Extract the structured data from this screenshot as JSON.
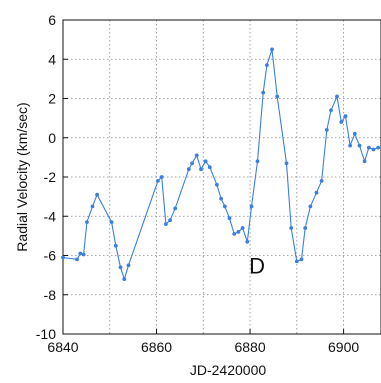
{
  "chart_data": {
    "type": "line",
    "xlabel": "JD-2420000",
    "ylabel": "Radial Velocity (km/sec)",
    "xlim": [
      6840,
      6908
    ],
    "ylim": [
      -10,
      6
    ],
    "xticks": [
      "6840",
      "6860",
      "6880",
      "6900"
    ],
    "yticks": [
      "-10",
      "-8",
      "-6",
      "-4",
      "-2",
      "0",
      "2",
      "4",
      "6"
    ],
    "grid": true,
    "grid_style": "dotted",
    "line_color": "#3b7fe0",
    "series": [
      {
        "x": [
          6840.0,
          6843.0,
          6843.7,
          6844.4,
          6845.1,
          6846.3,
          6847.3,
          6850.4,
          6851.3,
          6852.3,
          6853.1,
          6854.0,
          6860.3,
          6861.1,
          6862.0,
          6862.9,
          6864.0,
          6866.9,
          6867.6,
          6868.6,
          6869.5,
          6870.5,
          6871.4,
          6872.9,
          6873.8,
          6874.6,
          6875.6,
          6876.6,
          6877.5,
          6878.4,
          6879.4,
          6880.3,
          6881.6,
          6882.8,
          6883.6,
          6884.7,
          6885.8,
          6887.8,
          6888.8,
          6890.0,
          6891.0,
          6891.8,
          6892.9,
          6894.2,
          6895.3,
          6896.4,
          6897.3,
          6898.6,
          6899.5,
          6900.4,
          6901.4,
          6902.4,
          6903.4,
          6904.5,
          6905.4,
          6906.4,
          6907.4
        ],
        "y": [
          -6.1,
          -6.2,
          -5.9,
          -5.95,
          -4.3,
          -3.5,
          -2.9,
          -4.3,
          -5.5,
          -6.6,
          -7.2,
          -6.5,
          -2.2,
          -2.0,
          -4.4,
          -4.2,
          -3.6,
          -1.6,
          -1.3,
          -0.9,
          -1.6,
          -1.2,
          -1.5,
          -2.4,
          -3.1,
          -3.5,
          -4.1,
          -4.9,
          -4.8,
          -4.6,
          -5.3,
          -3.5,
          -1.2,
          2.3,
          3.7,
          4.5,
          2.1,
          -1.3,
          -4.6,
          -6.3,
          -6.2,
          -4.6,
          -3.5,
          -2.8,
          -2.2,
          0.4,
          1.4,
          2.1,
          0.8,
          1.1,
          -0.4,
          0.2,
          -0.4,
          -1.2,
          -0.5,
          -0.6,
          -0.5
        ]
      }
    ],
    "annotations": [
      {
        "text": "D",
        "x": 6881.5,
        "y": -6.5
      }
    ]
  }
}
